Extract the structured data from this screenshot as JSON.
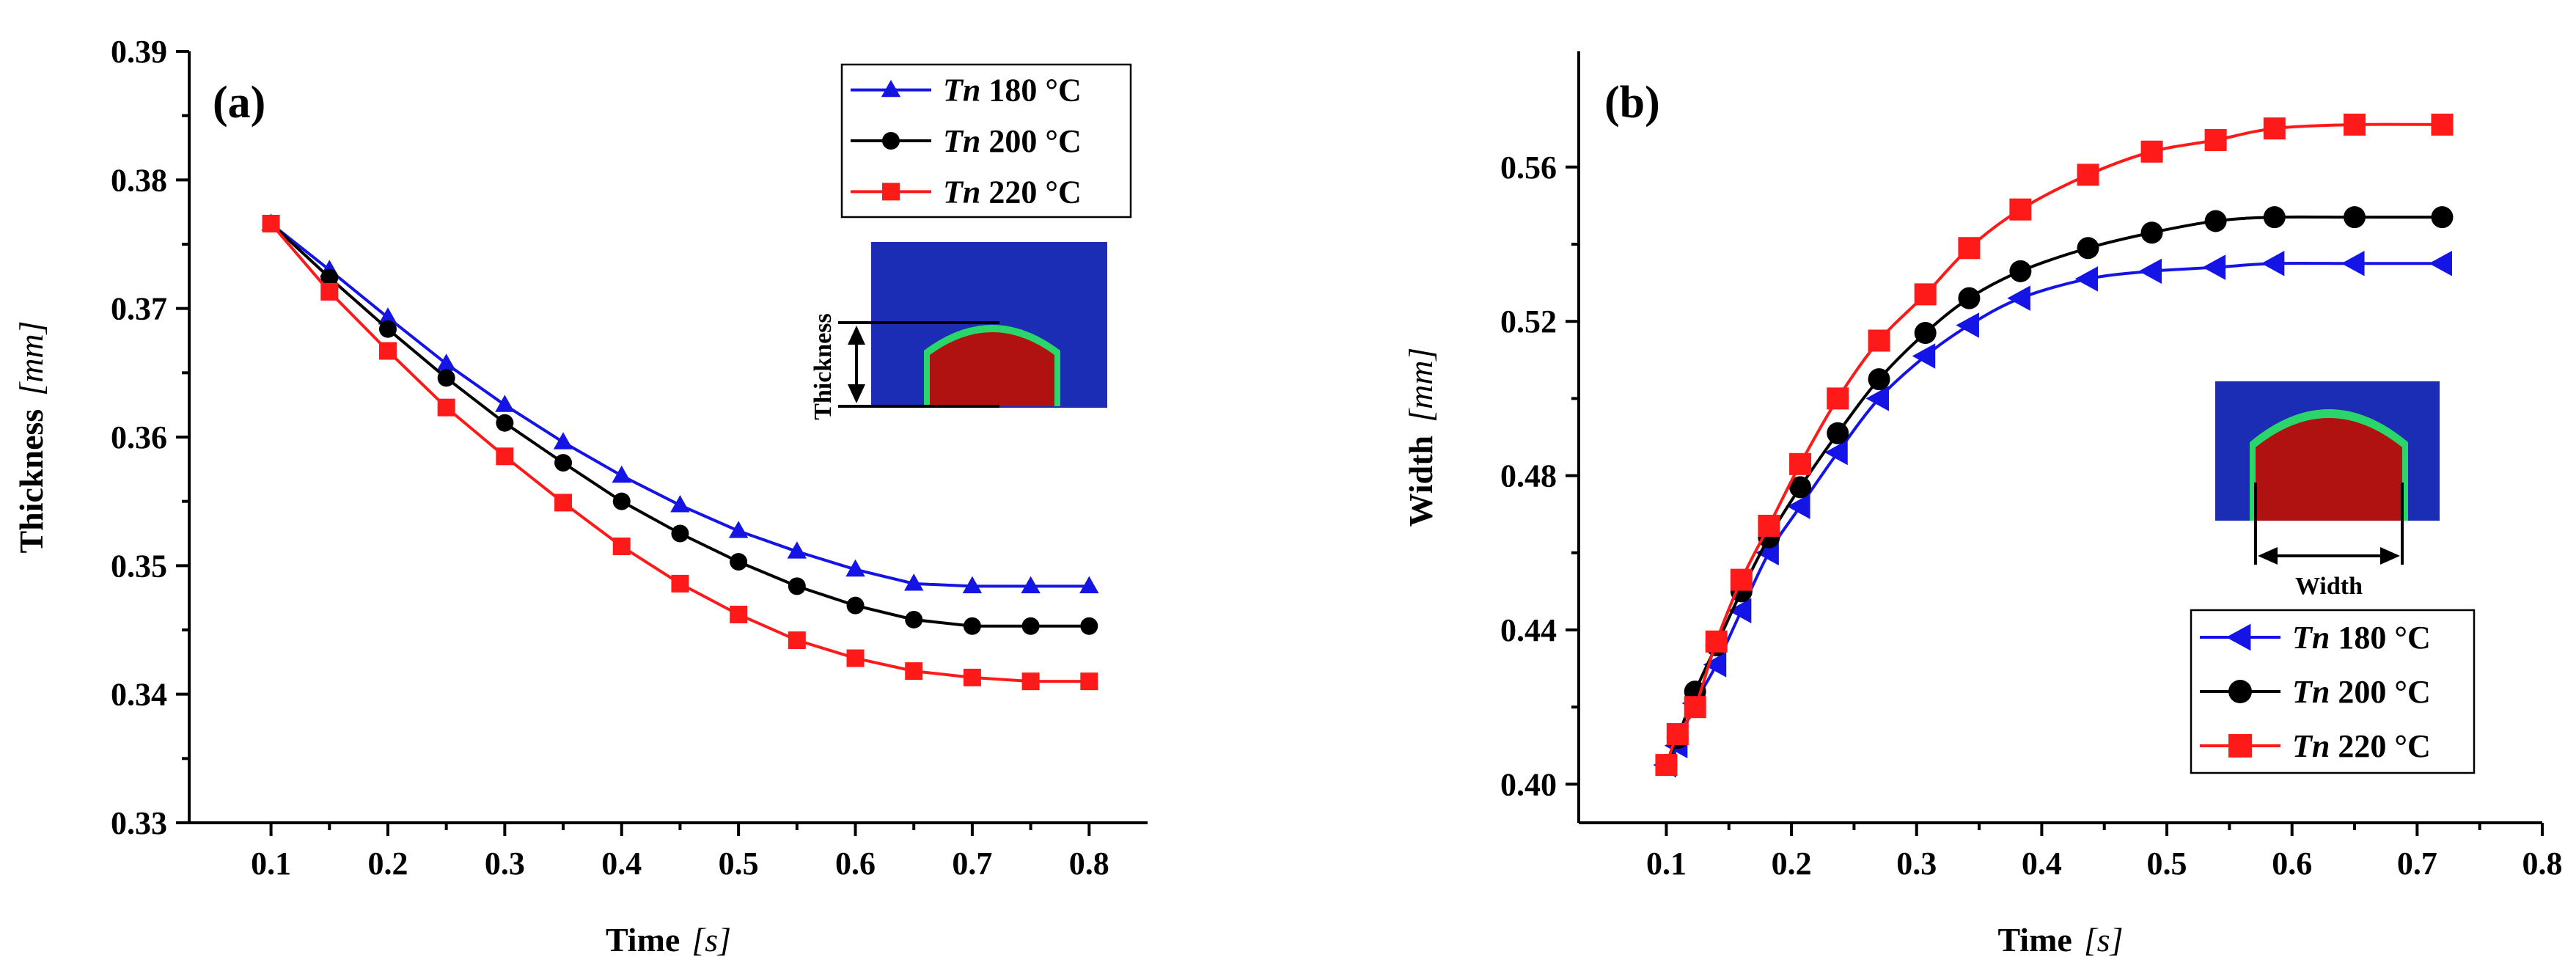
{
  "colors": {
    "tn180": "#1414e6",
    "tn200": "#000000",
    "tn220": "#ff1a1a",
    "inset_bg": "#1a2db4",
    "inset_body": "#b01212",
    "inset_rim": "#2ad66a",
    "annotation": "#ff1a1a"
  },
  "chart_data": [
    {
      "type": "line",
      "panel_label": "(a)",
      "title": "",
      "xlabel": "Time",
      "xlabel_unit": "[s]",
      "ylabel": "Thickness",
      "ylabel_unit": "[mm]",
      "xlim": [
        0.03,
        0.85
      ],
      "ylim": [
        0.33,
        0.39
      ],
      "xticks": [
        "0.1",
        "0.2",
        "0.3",
        "0.4",
        "0.5",
        "0.6",
        "0.7",
        "0.8"
      ],
      "yticks": [
        "0.33",
        "0.34",
        "0.35",
        "0.36",
        "0.37",
        "0.38",
        "0.39"
      ],
      "legend_position": "top-right",
      "inset_annotation": "Thickness",
      "x": [
        0.1,
        0.15,
        0.2,
        0.25,
        0.3,
        0.35,
        0.4,
        0.45,
        0.5,
        0.55,
        0.6,
        0.65,
        0.7,
        0.75,
        0.8
      ],
      "series": [
        {
          "name_prefix": "Tn",
          "name_suffix": " 180 °C",
          "marker": "triangle-up",
          "color_key": "tn180",
          "values": [
            0.3766,
            0.373,
            0.3693,
            0.3657,
            0.3625,
            0.3596,
            0.357,
            0.3547,
            0.3527,
            0.3511,
            0.3497,
            0.3486,
            0.3484,
            0.3484,
            0.3484
          ]
        },
        {
          "name_prefix": "Tn",
          "name_suffix": " 200 °C",
          "marker": "circle",
          "color_key": "tn200",
          "values": [
            0.3766,
            0.3724,
            0.3684,
            0.3646,
            0.3611,
            0.358,
            0.355,
            0.3525,
            0.3503,
            0.3484,
            0.3469,
            0.3458,
            0.3453,
            0.3453,
            0.3453
          ]
        },
        {
          "name_prefix": "Tn",
          "name_suffix": " 220 °C",
          "marker": "square",
          "color_key": "tn220",
          "values": [
            0.3766,
            0.3713,
            0.3667,
            0.3623,
            0.3585,
            0.3549,
            0.3515,
            0.3486,
            0.3462,
            0.3442,
            0.3428,
            0.3418,
            0.3413,
            0.341,
            0.341
          ]
        }
      ]
    },
    {
      "type": "line",
      "panel_label": "(b)",
      "title": "",
      "xlabel": "Time",
      "xlabel_unit": "[s]",
      "ylabel": "Width",
      "ylabel_unit": "[mm]",
      "xlim": [
        0.03,
        0.8
      ],
      "ylim": [
        0.39,
        0.59
      ],
      "xticks": [
        "0.1",
        "0.2",
        "0.3",
        "0.4",
        "0.5",
        "0.6",
        "0.7",
        "0.8"
      ],
      "yticks": [
        "0.40",
        "0.44",
        "0.48",
        "0.52",
        "0.56"
      ],
      "legend_position": "bottom-right",
      "inset_annotation": "Width",
      "x": [
        0.1,
        0.109,
        0.123,
        0.14,
        0.16,
        0.182,
        0.207,
        0.237,
        0.27,
        0.307,
        0.342,
        0.383,
        0.437,
        0.488,
        0.539,
        0.586,
        0.65,
        0.72
      ],
      "series": [
        {
          "name_prefix": "Tn",
          "name_suffix": " 180 °C",
          "marker": "triangle-left",
          "color_key": "tn180",
          "values": [
            0.405,
            0.41,
            0.421,
            0.431,
            0.445,
            0.46,
            0.472,
            0.486,
            0.5,
            0.511,
            0.519,
            0.526,
            0.531,
            0.533,
            0.534,
            0.535,
            0.535,
            0.535
          ]
        },
        {
          "name_prefix": "Tn",
          "name_suffix": " 200 °C",
          "marker": "circle",
          "color_key": "tn200",
          "values": [
            0.405,
            0.412,
            0.424,
            0.436,
            0.45,
            0.464,
            0.477,
            0.491,
            0.505,
            0.517,
            0.526,
            0.533,
            0.539,
            0.543,
            0.546,
            0.547,
            0.547,
            0.547
          ]
        },
        {
          "name_prefix": "Tn",
          "name_suffix": " 220 °C",
          "marker": "square",
          "color_key": "tn220",
          "values": [
            0.405,
            0.413,
            0.42,
            0.437,
            0.453,
            0.467,
            0.483,
            0.5,
            0.515,
            0.527,
            0.539,
            0.549,
            0.558,
            0.564,
            0.567,
            0.57,
            0.571,
            0.571
          ]
        }
      ]
    }
  ]
}
